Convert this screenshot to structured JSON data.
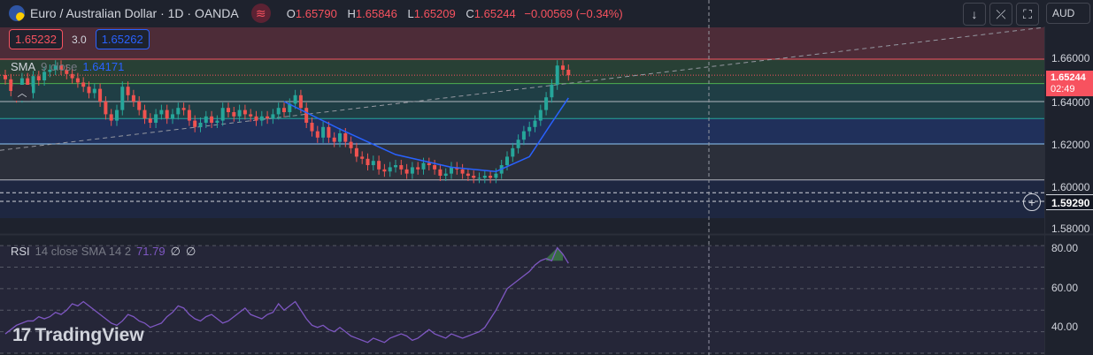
{
  "header": {
    "symbol_title": "Euro / Australian Dollar · 1D · OANDA",
    "ohlc": {
      "o_label": "O",
      "o_value": "1.65790",
      "h_label": "H",
      "h_value": "1.65846",
      "l_label": "L",
      "l_value": "1.65209",
      "c_label": "C",
      "c_value": "1.65244",
      "change": "−0.00569 (−0.34%)"
    }
  },
  "toolbar": {
    "currency": "AUD",
    "down_icon": "arrow-down-icon",
    "collapse_icon": "collapse-arrows-icon",
    "fullscreen_icon": "fullscreen-icon"
  },
  "trade_panel": {
    "sell_price": "1.65232",
    "spread": "3.0",
    "buy_price": "1.65262"
  },
  "sma_legend": {
    "name": "SMA",
    "params": "9 close",
    "value": "1.64171"
  },
  "rsi_legend": {
    "name": "RSI",
    "params": "14 close SMA 14 2",
    "value": "71.79",
    "v2": "∅",
    "v3": "∅"
  },
  "price_axis": {
    "ticks": [
      "1.66000",
      "1.64000",
      "1.62000",
      "1.60000",
      "1.58000"
    ]
  },
  "rsi_axis": {
    "ticks": [
      "80.00",
      "60.00",
      "40.00"
    ]
  },
  "last_price": {
    "value": "1.65244",
    "countdown": "02:49"
  },
  "crosshair_price": "1.59290",
  "branding": {
    "name": "TradingView"
  },
  "colors": {
    "up": "#26a69a",
    "down": "#ef5350",
    "sma": "#2962ff",
    "rsi": "#7e57c2",
    "bg": "#1e222d"
  },
  "chart_data": [
    {
      "type": "candlestick",
      "price_ticks": [
        1.66,
        1.64,
        1.62,
        1.6,
        1.58
      ],
      "ylim": [
        1.57,
        1.68
      ],
      "last_price": 1.65244,
      "zones": [
        {
          "from": 1.66,
          "to": 1.675,
          "color": "#f7525f"
        },
        {
          "from": 1.6485,
          "to": 1.66,
          "color": "#4caf50"
        },
        {
          "from": 1.64,
          "to": 1.6485,
          "color": "#26a69a"
        },
        {
          "from": 1.632,
          "to": 1.64,
          "color": "#26a69a"
        },
        {
          "from": 1.62,
          "to": 1.632,
          "color": "#2962ff"
        },
        {
          "from": 1.603,
          "to": 1.62,
          "color": "#5d606b"
        },
        {
          "from": 1.585,
          "to": 1.603,
          "color": "#1e3a8a"
        }
      ],
      "levels": [
        1.66,
        1.6485,
        1.64,
        1.632,
        1.62,
        1.603
      ],
      "dashed_levels": [
        1.597,
        1.5929
      ],
      "trendline": {
        "from": [
          0,
          1.617
        ],
        "to": [
          100,
          1.675
        ]
      },
      "close": [
        1.6505,
        1.645,
        1.642,
        1.651,
        1.644,
        1.652,
        1.65,
        1.654,
        1.655,
        1.657,
        1.655,
        1.653,
        1.651,
        1.649,
        1.647,
        1.644,
        1.646,
        1.64,
        1.634,
        1.631,
        1.636,
        1.647,
        1.643,
        1.64,
        1.636,
        1.632,
        1.63,
        1.634,
        1.636,
        1.632,
        1.634,
        1.637,
        1.636,
        1.631,
        1.628,
        1.63,
        1.633,
        1.63,
        1.631,
        1.637,
        1.635,
        1.633,
        1.636,
        1.634,
        1.633,
        1.631,
        1.633,
        1.632,
        1.634,
        1.637,
        1.635,
        1.639,
        1.643,
        1.637,
        1.63,
        1.626,
        1.623,
        1.628,
        1.623,
        1.621,
        1.625,
        1.621,
        1.618,
        1.614,
        1.613,
        1.61,
        1.612,
        1.608,
        1.607,
        1.609,
        1.61,
        1.608,
        1.606,
        1.609,
        1.608,
        1.611,
        1.61,
        1.608,
        1.605,
        1.606,
        1.609,
        1.608,
        1.606,
        1.605,
        1.604,
        1.604,
        1.605,
        1.604,
        1.606,
        1.61,
        1.614,
        1.618,
        1.622,
        1.626,
        1.628,
        1.631,
        1.636,
        1.642,
        1.648,
        1.657,
        1.655,
        1.6524
      ],
      "sma": [
        [
          50,
          1.64
        ],
        [
          60,
          1.627
        ],
        [
          70,
          1.615
        ],
        [
          80,
          1.609
        ],
        [
          88,
          1.607
        ],
        [
          94,
          1.614
        ],
        [
          98,
          1.63
        ],
        [
          101,
          1.6417
        ]
      ]
    },
    {
      "type": "line",
      "name": "RSI",
      "ylim": [
        30,
        85
      ],
      "ticks": [
        80,
        60,
        40
      ],
      "values": [
        39,
        41,
        43,
        44,
        45,
        45,
        47,
        46,
        47,
        49,
        48,
        50,
        53,
        52,
        54,
        52,
        50,
        48,
        46,
        44,
        43,
        45,
        48,
        47,
        45,
        44,
        42,
        43,
        44,
        47,
        49,
        52,
        51,
        48,
        46,
        45,
        47,
        48,
        46,
        44,
        45,
        47,
        49,
        51,
        48,
        47,
        46,
        48,
        49,
        53,
        50,
        52,
        54,
        50,
        46,
        43,
        42,
        43,
        41,
        40,
        42,
        40,
        38,
        37,
        36,
        35,
        37,
        36,
        35,
        37,
        38,
        39,
        38,
        36,
        37,
        39,
        41,
        39,
        38,
        37,
        39,
        38,
        37,
        38,
        39,
        40,
        42,
        46,
        50,
        55,
        60,
        62,
        64,
        66,
        68,
        71,
        73,
        74,
        73,
        79,
        76,
        71.79
      ]
    }
  ]
}
